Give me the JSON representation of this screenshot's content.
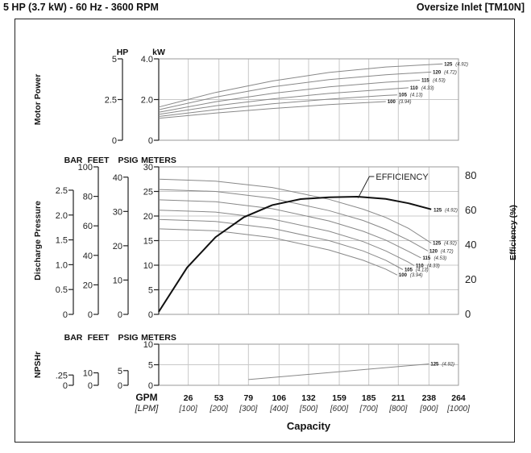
{
  "header": {
    "left": "5 HP (3.7 kW) - 60 Hz - 3600 RPM",
    "right": "Oversize Inlet [TM10N]"
  },
  "colors": {
    "grid": "#c8c8c8",
    "curve": "#888888",
    "efficiency": "#111111",
    "frame": "#222222"
  },
  "chart_data": [
    {
      "type": "line",
      "panel": "motor-power",
      "ylabel": "Motor Power",
      "axes": [
        {
          "name": "HP",
          "min": 0,
          "max": 5,
          "ticks": [
            {
              "v": 0,
              "label": "0"
            },
            {
              "v": 2.5,
              "label": "2.5"
            },
            {
              "v": 5,
              "label": "5"
            }
          ]
        },
        {
          "name": "kW",
          "min": 0,
          "max": 4,
          "ticks": [
            {
              "v": 0,
              "label": "0"
            },
            {
              "v": 2,
              "label": "2.0"
            },
            {
              "v": 4,
              "label": "4.0"
            }
          ]
        }
      ],
      "x_unit": "GPM",
      "series": [
        {
          "name": "125",
          "name_metric": "(4.92)",
          "x": [
            0,
            50,
            100,
            150,
            200,
            250
          ],
          "y": [
            1.63,
            2.35,
            2.91,
            3.33,
            3.6,
            3.75
          ]
        },
        {
          "name": "120",
          "name_metric": "(4.72)",
          "x": [
            0,
            50,
            100,
            150,
            200,
            240
          ],
          "y": [
            1.5,
            2.12,
            2.62,
            2.98,
            3.22,
            3.35
          ]
        },
        {
          "name": "115",
          "name_metric": "(4.53)",
          "x": [
            0,
            50,
            100,
            150,
            200,
            230
          ],
          "y": [
            1.38,
            1.89,
            2.3,
            2.62,
            2.85,
            2.95
          ]
        },
        {
          "name": "110",
          "name_metric": "(4.33)",
          "x": [
            0,
            50,
            100,
            150,
            200,
            220
          ],
          "y": [
            1.27,
            1.69,
            2.03,
            2.3,
            2.5,
            2.58
          ]
        },
        {
          "name": "105",
          "name_metric": "(4.13)",
          "x": [
            0,
            50,
            100,
            150,
            200,
            210
          ],
          "y": [
            1.17,
            1.5,
            1.79,
            2.02,
            2.2,
            2.23
          ]
        },
        {
          "name": "100",
          "name_metric": "(3.94)",
          "x": [
            0,
            50,
            100,
            150,
            200
          ],
          "y": [
            1.08,
            1.34,
            1.56,
            1.75,
            1.9
          ]
        }
      ]
    },
    {
      "type": "line",
      "panel": "discharge-pressure",
      "ylabel": "Discharge Pressure",
      "y2label": "Efficiency (%)",
      "axes": [
        {
          "name": "BAR",
          "min": 0,
          "max": 2.97,
          "ticks": [
            {
              "v": 0,
              "label": "0"
            },
            {
              "v": 0.5,
              "label": "0.5"
            },
            {
              "v": 1,
              "label": "1.0"
            },
            {
              "v": 1.5,
              "label": "1.5"
            },
            {
              "v": 2,
              "label": "2.0"
            },
            {
              "v": 2.5,
              "label": "2.5"
            }
          ]
        },
        {
          "name": "FEET",
          "min": 0,
          "max": 100,
          "ticks": [
            {
              "v": 0,
              "label": "0"
            },
            {
              "v": 20,
              "label": "20"
            },
            {
              "v": 40,
              "label": "40"
            },
            {
              "v": 60,
              "label": "60"
            },
            {
              "v": 80,
              "label": "80"
            },
            {
              "v": 100,
              "label": "100"
            }
          ]
        },
        {
          "name": "PSIG",
          "min": 0,
          "max": 43,
          "ticks": [
            {
              "v": 0,
              "label": "0"
            },
            {
              "v": 10,
              "label": "10"
            },
            {
              "v": 20,
              "label": "20"
            },
            {
              "v": 30,
              "label": "30"
            },
            {
              "v": 40,
              "label": "40"
            }
          ]
        },
        {
          "name": "METERS",
          "min": 0,
          "max": 30,
          "ticks": [
            {
              "v": 0,
              "label": "0"
            },
            {
              "v": 5,
              "label": "5"
            },
            {
              "v": 10,
              "label": "10"
            },
            {
              "v": 15,
              "label": "15"
            },
            {
              "v": 20,
              "label": "20"
            },
            {
              "v": 25,
              "label": "25"
            },
            {
              "v": 30,
              "label": "30"
            }
          ]
        }
      ],
      "y2_ticks": [
        {
          "v": 0,
          "label": "0"
        },
        {
          "v": 20,
          "label": "20"
        },
        {
          "v": 40,
          "label": "40"
        },
        {
          "v": 60,
          "label": "60"
        },
        {
          "v": 80,
          "label": "80"
        }
      ],
      "y2_max": 85,
      "x_unit": "GPM",
      "series": [
        {
          "name": "125",
          "name_metric": "(4.92)",
          "x": [
            0,
            50,
            100,
            150,
            180,
            200,
            220,
            240
          ],
          "y": [
            27.5,
            27.1,
            25.8,
            23.4,
            21.4,
            19.7,
            17.5,
            14.5
          ]
        },
        {
          "name": "120",
          "name_metric": "(4.72)",
          "x": [
            0,
            50,
            100,
            150,
            180,
            200,
            220,
            237
          ],
          "y": [
            25.4,
            25,
            23.6,
            21.1,
            19.1,
            17.3,
            15.1,
            12.9
          ]
        },
        {
          "name": "115",
          "name_metric": "(4.53)",
          "x": [
            0,
            50,
            100,
            150,
            180,
            200,
            220,
            231
          ],
          "y": [
            23.3,
            22.9,
            21.5,
            19,
            16.9,
            15.1,
            12.8,
            11.5
          ]
        },
        {
          "name": "110",
          "name_metric": "(4.33)",
          "x": [
            0,
            50,
            100,
            150,
            180,
            200,
            220,
            225
          ],
          "y": [
            21.2,
            20.8,
            19.4,
            16.9,
            14.8,
            12.9,
            10.6,
            9.9
          ]
        },
        {
          "name": "105",
          "name_metric": "(4.13)",
          "x": [
            0,
            50,
            100,
            150,
            180,
            200,
            215
          ],
          "y": [
            19.3,
            18.9,
            17.5,
            15,
            12.9,
            11,
            9.1
          ]
        },
        {
          "name": "100",
          "name_metric": "(3.94)",
          "x": [
            0,
            50,
            100,
            150,
            180,
            200,
            210
          ],
          "y": [
            17.4,
            17,
            15.6,
            13.1,
            11,
            9.2,
            8
          ]
        }
      ],
      "efficiency": {
        "label": "EFFICIENCY",
        "name": "125",
        "name_metric": "(4.92)",
        "x": [
          0,
          25,
          50,
          75,
          100,
          125,
          150,
          175,
          200,
          220,
          240
        ],
        "y": [
          1.5,
          27,
          44.5,
          56,
          63,
          66.4,
          67.5,
          67.8,
          66.5,
          64,
          60.5
        ]
      }
    },
    {
      "type": "line",
      "panel": "npshr",
      "ylabel": "NPSHr",
      "axes": [
        {
          "name": "BAR",
          "min": 0,
          "max": 1,
          "ticks": [
            {
              "v": 0,
              "label": "0"
            },
            {
              "v": 0.25,
              "label": ".25"
            }
          ]
        },
        {
          "name": "FEET",
          "min": 0,
          "max": 33,
          "ticks": [
            {
              "v": 0,
              "label": "0"
            },
            {
              "v": 10,
              "label": "10"
            }
          ]
        },
        {
          "name": "PSIG",
          "min": 0,
          "max": 14,
          "ticks": [
            {
              "v": 0,
              "label": "0"
            },
            {
              "v": 5,
              "label": "5"
            }
          ]
        },
        {
          "name": "METERS",
          "min": 0,
          "max": 10,
          "ticks": [
            {
              "v": 0,
              "label": "0"
            },
            {
              "v": 5,
              "label": "5"
            },
            {
              "v": 10,
              "label": "10"
            }
          ]
        }
      ],
      "x_unit": "GPM",
      "series": [
        {
          "name": "125",
          "name_metric": "(4.92)",
          "x": [
            79,
            238
          ],
          "y": [
            1.4,
            5.2
          ]
        }
      ]
    }
  ],
  "x_axis": {
    "unit": "GPM",
    "unit_metric": "[LPM]",
    "title": "Capacity",
    "min": 0,
    "max": 264,
    "ticks": [
      {
        "gpm": 26,
        "label": "26",
        "lpm": "[100]"
      },
      {
        "gpm": 53,
        "label": "53",
        "lpm": "[200]"
      },
      {
        "gpm": 79,
        "label": "79",
        "lpm": "[300]"
      },
      {
        "gpm": 106,
        "label": "106",
        "lpm": "[400]"
      },
      {
        "gpm": 132,
        "label": "132",
        "lpm": "[500]"
      },
      {
        "gpm": 159,
        "label": "159",
        "lpm": "[600]"
      },
      {
        "gpm": 185,
        "label": "185",
        "lpm": "[700]"
      },
      {
        "gpm": 211,
        "label": "211",
        "lpm": "[800]"
      },
      {
        "gpm": 238,
        "label": "238",
        "lpm": "[900]"
      },
      {
        "gpm": 264,
        "label": "264",
        "lpm": "[1000]"
      }
    ]
  }
}
